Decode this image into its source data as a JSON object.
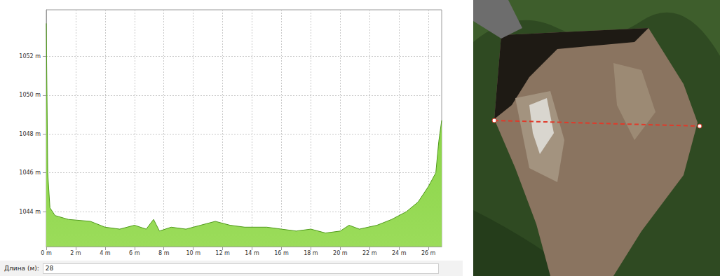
{
  "chart_data": {
    "type": "area",
    "color": "#7dcf3a",
    "grid": true,
    "x": [
      0,
      0.1,
      0.25,
      0.6,
      1.5,
      3,
      4,
      5,
      6,
      6.8,
      7.3,
      7.7,
      8.5,
      9.5,
      10.5,
      11.5,
      12.5,
      13.5,
      15,
      16,
      17,
      18,
      19,
      20,
      20.6,
      21.3,
      22.5,
      23.5,
      24.5,
      25.3,
      26,
      26.5,
      26.7,
      26.9
    ],
    "values": [
      1053.7,
      1046,
      1044.2,
      1043.8,
      1043.6,
      1043.5,
      1043.2,
      1043.1,
      1043.3,
      1043.1,
      1043.6,
      1043.0,
      1043.2,
      1043.1,
      1043.3,
      1043.5,
      1043.3,
      1043.2,
      1043.2,
      1043.1,
      1043.0,
      1043.1,
      1042.9,
      1043.0,
      1043.3,
      1043.1,
      1043.3,
      1043.6,
      1044.0,
      1044.5,
      1045.3,
      1046.0,
      1047.6,
      1048.7
    ],
    "xlim": [
      0,
      26.9
    ],
    "xticks": [
      {
        "value": 0,
        "label": "0 m"
      },
      {
        "value": 2,
        "label": "2 m"
      },
      {
        "value": 4,
        "label": "4 m"
      },
      {
        "value": 6,
        "label": "6 m"
      },
      {
        "value": 8,
        "label": "8 m"
      },
      {
        "value": 10,
        "label": "10 m"
      },
      {
        "value": 12,
        "label": "12 m"
      },
      {
        "value": 14,
        "label": "14 m"
      },
      {
        "value": 16,
        "label": "16 m"
      },
      {
        "value": 18,
        "label": "18 m"
      },
      {
        "value": 20,
        "label": "20 m"
      },
      {
        "value": 22,
        "label": "22 m"
      },
      {
        "value": 24,
        "label": "24 m"
      },
      {
        "value": 26,
        "label": "26 m"
      }
    ],
    "ylim": [
      1042.2,
      1054.4
    ],
    "yticks": [
      {
        "value": 1044,
        "label": "1044 m"
      },
      {
        "value": 1046,
        "label": "1046 m"
      },
      {
        "value": 1048,
        "label": "1048 m"
      },
      {
        "value": 1050,
        "label": "1050 m"
      },
      {
        "value": 1052,
        "label": "1052 m"
      }
    ]
  },
  "length_field": {
    "label": "Длина (м):",
    "value": 28
  }
}
